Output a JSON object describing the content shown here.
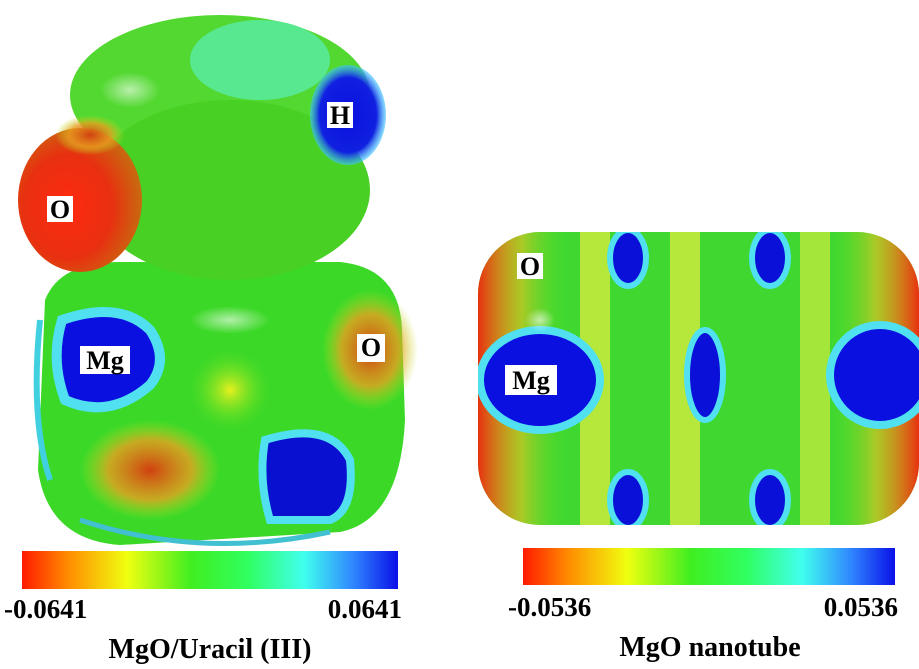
{
  "panels": [
    {
      "atom_labels": [
        "H",
        "O",
        "Mg",
        "O"
      ],
      "colorbar": {
        "min": "-0.0641",
        "max": "0.0641"
      },
      "caption": "MgO/Uracil (III)"
    },
    {
      "atom_labels": [
        "O",
        "Mg"
      ],
      "colorbar": {
        "min": "-0.0536",
        "max": "0.0536"
      },
      "caption": "MgO nanotube"
    }
  ]
}
